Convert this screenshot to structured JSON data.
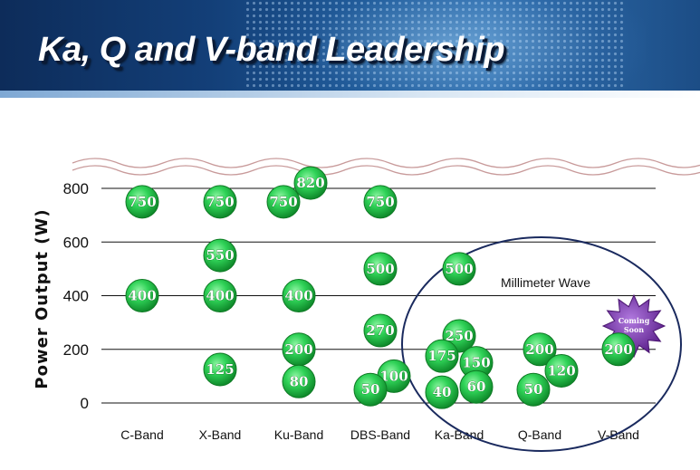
{
  "header": {
    "title": "Ka, Q and V-band Leadership"
  },
  "chart_data": {
    "type": "scatter",
    "title": "",
    "xlabel": "",
    "ylabel": "Power Output (W)",
    "ylim": [
      0,
      800
    ],
    "yticks": [
      0,
      200,
      400,
      600,
      800
    ],
    "grid": true,
    "categories": [
      "C-Band",
      "X-Band",
      "Ku-Band",
      "DBS-Band",
      "Ka-Band",
      "Q-Band",
      "V-Band"
    ],
    "points": [
      {
        "category": "C-Band",
        "value": 750,
        "label": "750"
      },
      {
        "category": "C-Band",
        "value": 400,
        "label": "400"
      },
      {
        "category": "X-Band",
        "value": 750,
        "label": "750"
      },
      {
        "category": "X-Band",
        "value": 550,
        "label": "550"
      },
      {
        "category": "X-Band",
        "value": 400,
        "label": "400"
      },
      {
        "category": "X-Band",
        "value": 125,
        "label": "125"
      },
      {
        "category": "Ku-Band",
        "value": 750,
        "label": "750"
      },
      {
        "category": "Ku-Band",
        "value": 820,
        "label": "820"
      },
      {
        "category": "Ku-Band",
        "value": 400,
        "label": "400"
      },
      {
        "category": "Ku-Band",
        "value": 200,
        "label": "200"
      },
      {
        "category": "Ku-Band",
        "value": 80,
        "label": "80"
      },
      {
        "category": "DBS-Band",
        "value": 750,
        "label": "750"
      },
      {
        "category": "DBS-Band",
        "value": 500,
        "label": "500"
      },
      {
        "category": "DBS-Band",
        "value": 270,
        "label": "270"
      },
      {
        "category": "DBS-Band",
        "value": 100,
        "label": "100"
      },
      {
        "category": "DBS-Band",
        "value": 50,
        "label": "50"
      },
      {
        "category": "Ka-Band",
        "value": 500,
        "label": "500"
      },
      {
        "category": "Ka-Band",
        "value": 250,
        "label": "250"
      },
      {
        "category": "Ka-Band",
        "value": 175,
        "label": "175"
      },
      {
        "category": "Ka-Band",
        "value": 150,
        "label": "150"
      },
      {
        "category": "Ka-Band",
        "value": 60,
        "label": "60"
      },
      {
        "category": "Ka-Band",
        "value": 40,
        "label": "40"
      },
      {
        "category": "Q-Band",
        "value": 200,
        "label": "200"
      },
      {
        "category": "Q-Band",
        "value": 120,
        "label": "120"
      },
      {
        "category": "Q-Band",
        "value": 50,
        "label": "50"
      },
      {
        "category": "V-Band",
        "value": 200,
        "label": "200"
      }
    ],
    "annotations": {
      "millimeter_wave": "Millimeter Wave",
      "coming_soon_line1": "Coming",
      "coming_soon_line2": "Soon"
    }
  },
  "colors": {
    "bubble": "#27c24a",
    "bubble_dark": "#0e7a24",
    "grid": "#111111",
    "ellipse": "#1a2a5e",
    "break_wave": "#c89a9a",
    "star": "#7a3aa8"
  }
}
